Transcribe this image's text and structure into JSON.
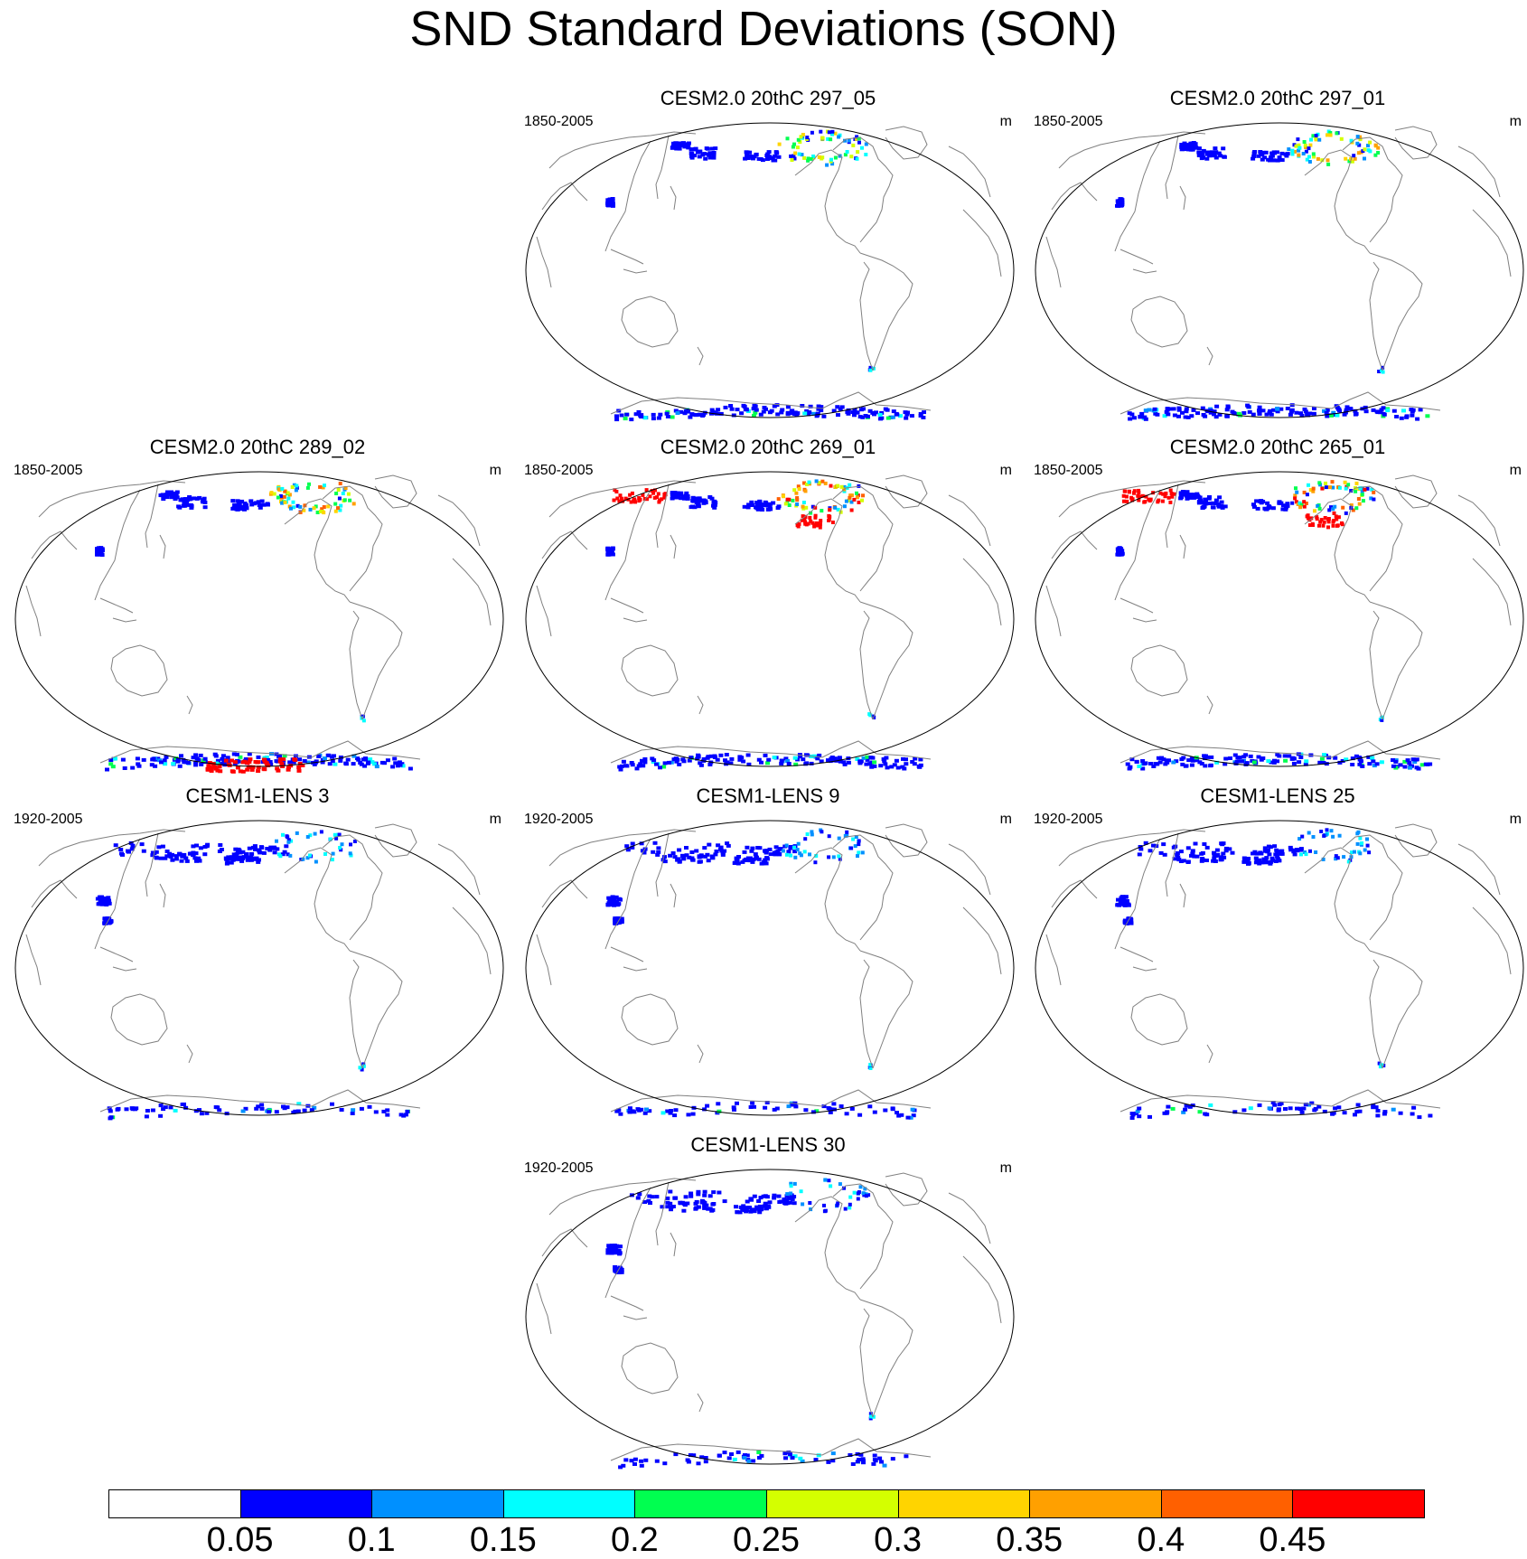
{
  "title": "SND Standard Deviations (SON)",
  "panels": [
    {
      "title": "CESM2.0 20thC 297_05",
      "period": "1850-2005",
      "units": "m",
      "intensity": 0.3,
      "south_red": false,
      "lens": false
    },
    {
      "title": "CESM2.0 20thC 297_01",
      "period": "1850-2005",
      "units": "m",
      "intensity": 0.35,
      "south_red": false,
      "lens": false
    },
    {
      "title": "CESM2.0 20thC 289_02",
      "period": "1850-2005",
      "units": "m",
      "intensity": 0.4,
      "south_red": true,
      "lens": false
    },
    {
      "title": "CESM2.0 20thC 269_01",
      "period": "1850-2005",
      "units": "m",
      "intensity": 0.45,
      "south_red": false,
      "lens": false
    },
    {
      "title": "CESM2.0 20thC 265_01",
      "period": "1850-2005",
      "units": "m",
      "intensity": 0.45,
      "south_red": false,
      "lens": false
    },
    {
      "title": "CESM1-LENS 3",
      "period": "1920-2005",
      "units": "m",
      "intensity": 0.15,
      "south_red": false,
      "lens": true
    },
    {
      "title": "CESM1-LENS 9",
      "period": "1920-2005",
      "units": "m",
      "intensity": 0.15,
      "south_red": false,
      "lens": true
    },
    {
      "title": "CESM1-LENS 25",
      "period": "1920-2005",
      "units": "m",
      "intensity": 0.15,
      "south_red": false,
      "lens": true
    },
    {
      "title": "CESM1-LENS 30",
      "period": "1920-2005",
      "units": "m",
      "intensity": 0.15,
      "south_red": false,
      "lens": true
    }
  ],
  "colorbar": {
    "labels": [
      "0.05",
      "0.1",
      "0.15",
      "0.2",
      "0.25",
      "0.3",
      "0.35",
      "0.4",
      "0.45"
    ],
    "colors": [
      "#ffffff",
      "#0000ff",
      "#0090ff",
      "#00ffff",
      "#00ff50",
      "#d4ff00",
      "#ffd400",
      "#ffa000",
      "#ff6000",
      "#ff0000"
    ]
  },
  "colors": {
    "coast": "#808080",
    "outline": "#000000"
  }
}
